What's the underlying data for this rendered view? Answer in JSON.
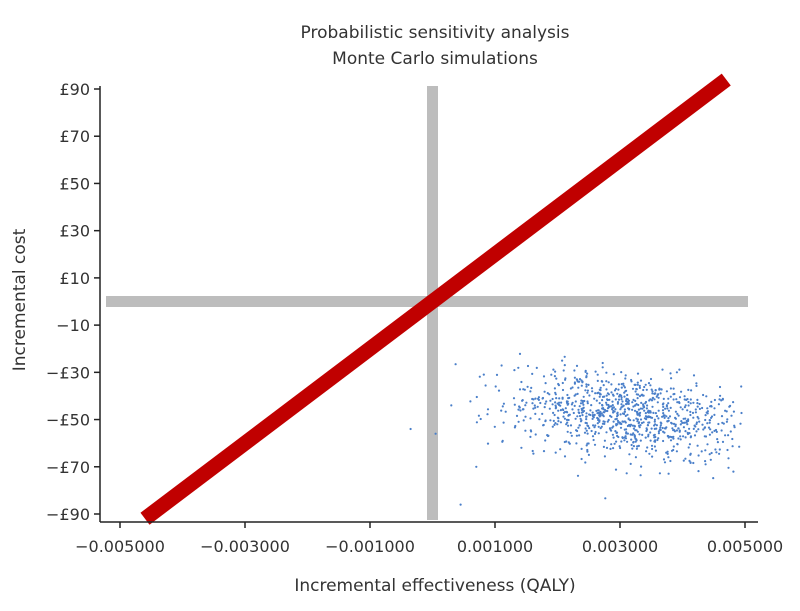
{
  "chart_data": {
    "type": "scatter",
    "title": "Probabilistic sensitivity analysis",
    "subtitle": "Monte Carlo simulations",
    "xlabel": "Incremental effectiveness (QALY)",
    "ylabel": "Incremental cost",
    "xlim": [
      -0.0052,
      0.0052
    ],
    "ylim": [
      -92,
      92
    ],
    "x_ticks": [
      -0.005,
      -0.003,
      -0.001,
      0.001,
      0.003,
      0.005
    ],
    "x_tick_labels": [
      "−0.005000",
      "−0.003000",
      "−0.001000",
      "0.001000",
      "0.003000",
      "0.005000"
    ],
    "y_ticks": [
      90,
      70,
      50,
      30,
      10,
      -10,
      -30,
      -50,
      -70,
      -90
    ],
    "y_tick_labels": [
      "£90",
      "£70",
      "£50",
      "£30",
      "£10",
      "−10",
      "−£30",
      "−£50",
      "−£70",
      "−£90"
    ],
    "grid": false,
    "colors": {
      "points": "#4a7fc9",
      "threshold_line": "#c00000",
      "zero_lines": "#bdbdbd"
    },
    "reference_lines": {
      "zero_x": 0,
      "zero_y": 0,
      "threshold_slope_per_qaly": 20000,
      "threshold_line_x_range": [
        -0.0046,
        0.0047
      ]
    },
    "series": [
      {
        "name": "",
        "n_points": 1000,
        "x_range": [
          -0.00035,
          0.00495
        ],
        "y_range": [
          -86,
          -22
        ],
        "x_mean": 0.0031,
        "y_mean": -48,
        "y_trend_per_qaly": -3000,
        "y_sd": 9,
        "outliers": [
          {
            "x": -0.00035,
            "y": -54
          },
          {
            "x": 5e-05,
            "y": -56
          },
          {
            "x": 0.00045,
            "y": -86
          },
          {
            "x": 0.0003,
            "y": -44
          },
          {
            "x": 0.0007,
            "y": -70
          }
        ]
      }
    ]
  }
}
